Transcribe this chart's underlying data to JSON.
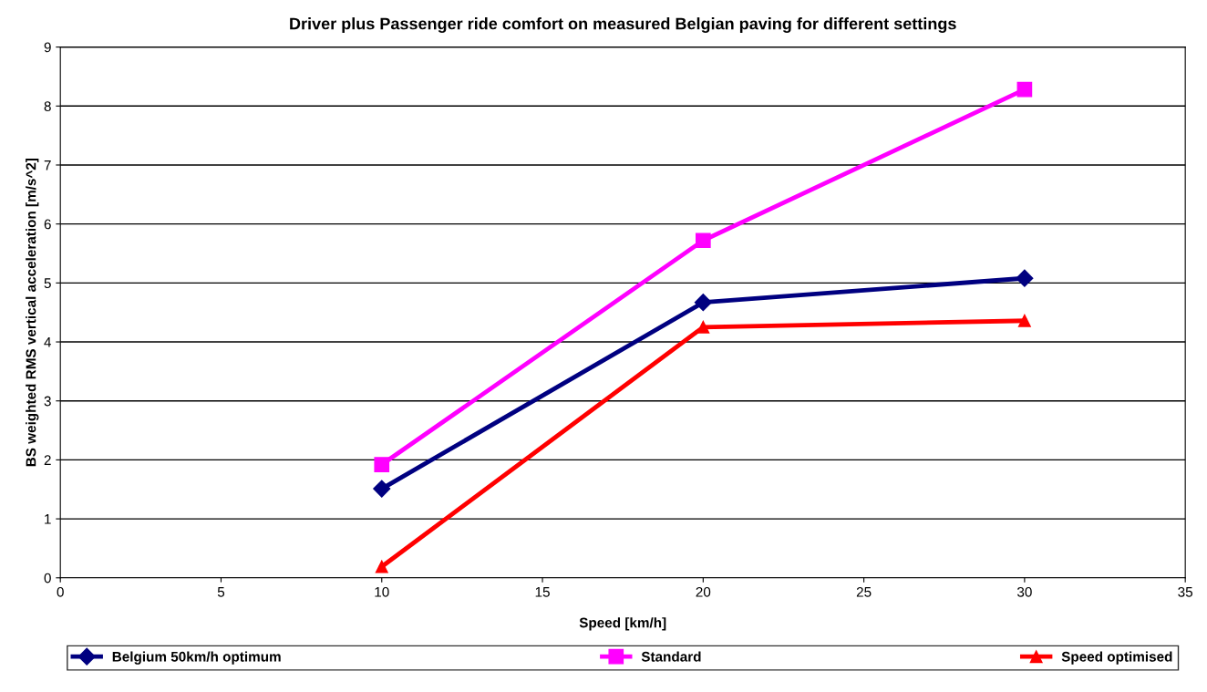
{
  "chart_data": {
    "type": "line",
    "title": "Driver plus Passenger ride comfort on measured Belgian paving for different settings",
    "xlabel": "Speed [km/h]",
    "ylabel": "BS weighted RMS vertical acceleration [m/s^2]",
    "x": [
      10,
      20,
      30
    ],
    "series": [
      {
        "name": "Belgium 50km/h optimum",
        "color": "#000080",
        "marker": "diamond",
        "values": [
          1.51,
          4.67,
          5.08
        ]
      },
      {
        "name": "Standard",
        "color": "#ff00ff",
        "marker": "square",
        "values": [
          1.92,
          5.72,
          8.28
        ]
      },
      {
        "name": "Speed optimised",
        "color": "#ff0000",
        "marker": "triangle",
        "values": [
          0.19,
          4.25,
          4.36
        ]
      }
    ],
    "xlim": [
      0,
      35
    ],
    "xticks": [
      0,
      5,
      10,
      15,
      20,
      25,
      30,
      35
    ],
    "ylim": [
      0,
      9
    ],
    "yticks": [
      0,
      1,
      2,
      3,
      4,
      5,
      6,
      7,
      8,
      9
    ],
    "grid": "y",
    "legend": "bottom"
  }
}
